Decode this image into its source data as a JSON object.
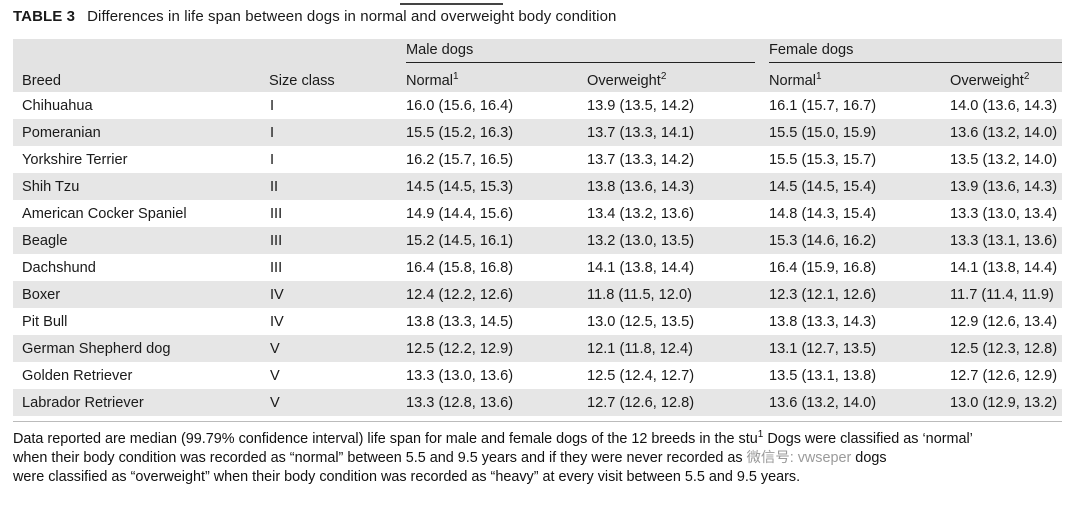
{
  "caption": {
    "label": "TABLE 3",
    "title": "Differences in life span between dogs in normal and overweight body condition"
  },
  "table": {
    "headers": {
      "breed": "Breed",
      "size_class": "Size class",
      "male_group": "Male dogs",
      "female_group": "Female dogs",
      "normal": "Normal",
      "normal_sup": "1",
      "overweight": "Overweight",
      "overweight_sup": "2"
    },
    "rows": [
      {
        "breed": "Chihuahua",
        "size": "I",
        "male_normal": "16.0 (15.6, 16.4)",
        "male_overweight": "13.9 (13.5, 14.2)",
        "female_normal": "16.1 (15.7, 16.7)",
        "female_overweight": "14.0 (13.6, 14.3)"
      },
      {
        "breed": "Pomeranian",
        "size": "I",
        "male_normal": "15.5 (15.2, 16.3)",
        "male_overweight": "13.7 (13.3, 14.1)",
        "female_normal": "15.5 (15.0, 15.9)",
        "female_overweight": "13.6 (13.2, 14.0)"
      },
      {
        "breed": "Yorkshire Terrier",
        "size": "I",
        "male_normal": "16.2 (15.7, 16.5)",
        "male_overweight": "13.7 (13.3, 14.2)",
        "female_normal": "15.5 (15.3, 15.7)",
        "female_overweight": "13.5 (13.2, 14.0)"
      },
      {
        "breed": "Shih Tzu",
        "size": "II",
        "male_normal": "14.5 (14.5, 15.3)",
        "male_overweight": "13.8 (13.6, 14.3)",
        "female_normal": "14.5 (14.5, 15.4)",
        "female_overweight": "13.9 (13.6, 14.3)"
      },
      {
        "breed": "American Cocker Spaniel",
        "size": "III",
        "male_normal": "14.9 (14.4, 15.6)",
        "male_overweight": "13.4 (13.2, 13.6)",
        "female_normal": "14.8 (14.3, 15.4)",
        "female_overweight": "13.3 (13.0, 13.4)"
      },
      {
        "breed": "Beagle",
        "size": "III",
        "male_normal": "15.2 (14.5, 16.1)",
        "male_overweight": "13.2 (13.0, 13.5)",
        "female_normal": "15.3 (14.6, 16.2)",
        "female_overweight": "13.3 (13.1, 13.6)"
      },
      {
        "breed": "Dachshund",
        "size": "III",
        "male_normal": "16.4 (15.8, 16.8)",
        "male_overweight": "14.1 (13.8, 14.4)",
        "female_normal": "16.4 (15.9, 16.8)",
        "female_overweight": "14.1 (13.8, 14.4)"
      },
      {
        "breed": "Boxer",
        "size": "IV",
        "male_normal": "12.4 (12.2, 12.6)",
        "male_overweight": "11.8 (11.5, 12.0)",
        "female_normal": "12.3 (12.1, 12.6)",
        "female_overweight": "11.7 (11.4, 11.9)"
      },
      {
        "breed": "Pit Bull",
        "size": "IV",
        "male_normal": "13.8 (13.3, 14.5)",
        "male_overweight": "13.0 (12.5, 13.5)",
        "female_normal": "13.8 (13.3, 14.3)",
        "female_overweight": "12.9 (12.6, 13.4)"
      },
      {
        "breed": "German Shepherd dog",
        "size": "V",
        "male_normal": "12.5 (12.2, 12.9)",
        "male_overweight": "12.1 (11.8, 12.4)",
        "female_normal": "13.1 (12.7, 13.5)",
        "female_overweight": "12.5 (12.3, 12.8)"
      },
      {
        "breed": "Golden Retriever",
        "size": "V",
        "male_normal": "13.3 (13.0, 13.6)",
        "male_overweight": "12.5 (12.4, 12.7)",
        "female_normal": "13.5 (13.1, 13.8)",
        "female_overweight": "12.7 (12.6, 12.9)"
      },
      {
        "breed": "Labrador Retriever",
        "size": "V",
        "male_normal": "13.3 (12.8, 13.6)",
        "male_overweight": "12.7 (12.6, 12.8)",
        "female_normal": "13.6 (13.2, 14.0)",
        "female_overweight": "13.0 (12.9, 13.2)"
      }
    ]
  },
  "footnote": {
    "line1_a": "Data reported are median (99.79% confidence interval) life span for male and female dogs of the 12 breeds in the stu",
    "line1_b": "1",
    "line1_c": " Dogs were classified as ‘normal’",
    "line2_a": "when their body condition was recorded as “normal” between 5.5 and 9.5 years and if they were never recorded as",
    "line2_wm": " 微信号: vwseper",
    "line2_c": " dogs",
    "line3": "were classified as “overweight” when their body condition was recorded as “heavy” at every visit between 5.5 and 9.5 years."
  }
}
